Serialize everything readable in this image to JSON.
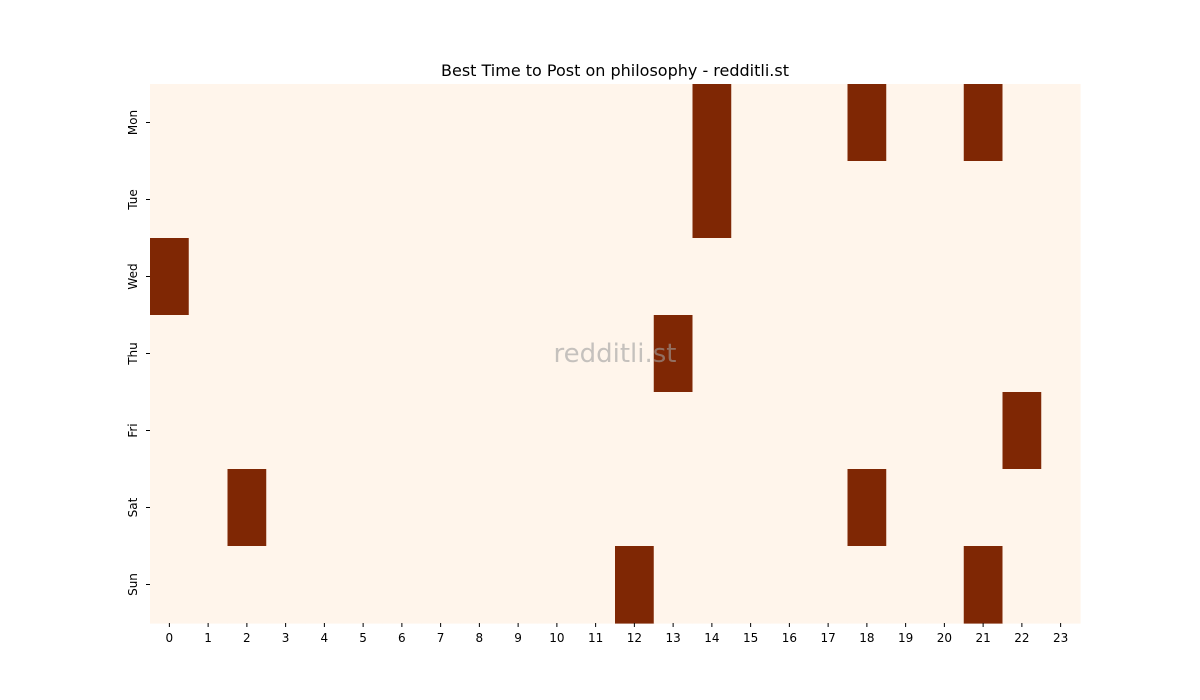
{
  "chart_data": {
    "type": "heatmap",
    "title": "Best Time to Post on philosophy - redditli.st",
    "xlabel": "",
    "ylabel": "",
    "x_categories": [
      "0",
      "1",
      "2",
      "3",
      "4",
      "5",
      "6",
      "7",
      "8",
      "9",
      "10",
      "11",
      "12",
      "13",
      "14",
      "15",
      "16",
      "17",
      "18",
      "19",
      "20",
      "21",
      "22",
      "23"
    ],
    "y_categories": [
      "Mon",
      "Tue",
      "Wed",
      "Thu",
      "Fri",
      "Sat",
      "Sun"
    ],
    "cells": [
      {
        "day": "Mon",
        "hour": 14,
        "value": 1
      },
      {
        "day": "Mon",
        "hour": 18,
        "value": 1
      },
      {
        "day": "Mon",
        "hour": 21,
        "value": 1
      },
      {
        "day": "Tue",
        "hour": 14,
        "value": 1
      },
      {
        "day": "Wed",
        "hour": 0,
        "value": 1
      },
      {
        "day": "Thu",
        "hour": 13,
        "value": 1
      },
      {
        "day": "Fri",
        "hour": 22,
        "value": 1
      },
      {
        "day": "Sat",
        "hour": 2,
        "value": 1
      },
      {
        "day": "Sat",
        "hour": 18,
        "value": 1
      },
      {
        "day": "Sun",
        "hour": 12,
        "value": 1
      },
      {
        "day": "Sun",
        "hour": 21,
        "value": 1
      }
    ],
    "colors": {
      "low": "#fff5eb",
      "high": "#7f2704"
    },
    "watermark": "redditli.st",
    "grid": false,
    "legend": "none"
  }
}
